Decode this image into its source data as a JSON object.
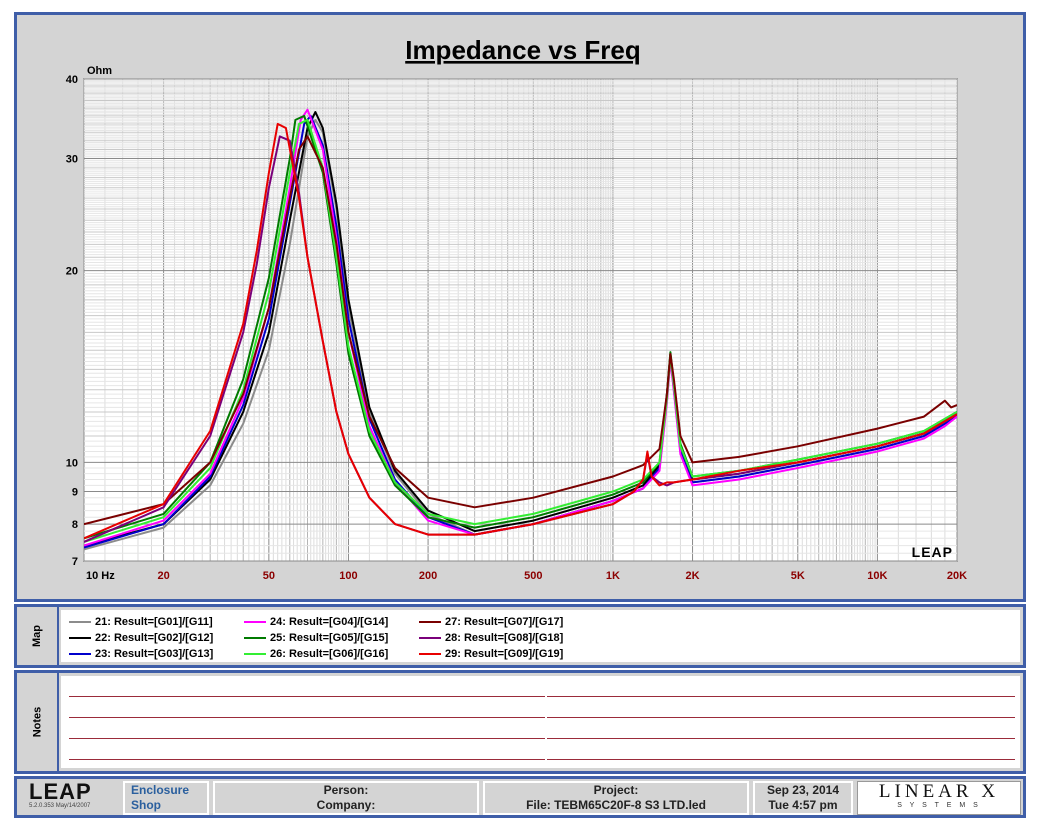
{
  "chart_data": {
    "type": "line",
    "title": "Impedance vs Freq",
    "ylabel": "Ohm",
    "x_scale": "log",
    "y_scale": "log",
    "xlim": [
      10,
      20000
    ],
    "ylim": [
      7,
      40
    ],
    "x_ticks": [
      10,
      20,
      50,
      100,
      200,
      500,
      1000,
      2000,
      5000,
      10000,
      20000
    ],
    "x_tick_labels": [
      "10 Hz",
      "20",
      "50",
      "100",
      "200",
      "500",
      "1K",
      "2K",
      "5K",
      "10K",
      "20K"
    ],
    "y_ticks": [
      7,
      8,
      9,
      10,
      20,
      30,
      40
    ],
    "y_tick_labels": [
      "7",
      "8",
      "9",
      "10",
      "20",
      "30",
      "40"
    ],
    "grid": true,
    "watermark": "LEAP",
    "series": [
      {
        "name": "21: Result=[G01]/[G11]",
        "color": "#8c8c8c",
        "x": [
          10,
          20,
          30,
          40,
          50,
          60,
          70,
          75,
          80,
          90,
          100,
          120,
          150,
          200,
          300,
          500,
          1000,
          1300,
          1500,
          1600,
          1650,
          1700,
          1800,
          2000,
          3000,
          5000,
          10000,
          15000,
          18000,
          20000
        ],
        "y": [
          7.3,
          7.9,
          9.2,
          11.5,
          15.0,
          22.0,
          32.5,
          34.5,
          33.0,
          25.0,
          17.5,
          12.0,
          9.6,
          8.3,
          7.7,
          8.0,
          8.7,
          9.1,
          9.8,
          12.5,
          14.6,
          13.0,
          10.5,
          9.3,
          9.5,
          9.9,
          10.5,
          11.0,
          11.5,
          11.8
        ]
      },
      {
        "name": "22: Result=[G02]/[G12]",
        "color": "#000000",
        "x": [
          10,
          20,
          30,
          40,
          50,
          60,
          70,
          75,
          80,
          90,
          100,
          120,
          150,
          200,
          300,
          500,
          1000,
          1300,
          1500,
          1600,
          1650,
          1700,
          1800,
          2000,
          3000,
          5000,
          10000,
          15000,
          18000,
          20000
        ],
        "y": [
          7.4,
          8.0,
          9.4,
          12.0,
          16.0,
          24.0,
          33.5,
          35.5,
          33.5,
          25.5,
          18.0,
          12.2,
          9.7,
          8.4,
          7.8,
          8.1,
          8.8,
          9.2,
          9.9,
          12.8,
          14.8,
          13.2,
          10.6,
          9.4,
          9.6,
          10.0,
          10.6,
          11.1,
          11.6,
          11.9
        ]
      },
      {
        "name": "23: Result=[G03]/[G13]",
        "color": "#0000cc",
        "x": [
          10,
          20,
          30,
          40,
          50,
          60,
          68,
          72,
          80,
          90,
          100,
          120,
          150,
          200,
          300,
          500,
          1000,
          1300,
          1500,
          1600,
          1650,
          1700,
          1800,
          2000,
          3000,
          5000,
          10000,
          15000,
          18000,
          20000
        ],
        "y": [
          7.35,
          8.0,
          9.5,
          12.3,
          16.8,
          25.5,
          34.0,
          35.0,
          31.5,
          23.5,
          16.8,
          11.7,
          9.4,
          8.2,
          7.7,
          8.0,
          8.7,
          9.1,
          9.8,
          12.6,
          14.7,
          13.0,
          10.4,
          9.3,
          9.5,
          9.9,
          10.5,
          11.0,
          11.5,
          11.8
        ]
      },
      {
        "name": "24: Result=[G04]/[G14]",
        "color": "#ff00ff",
        "x": [
          10,
          20,
          30,
          40,
          50,
          60,
          66,
          70,
          80,
          90,
          100,
          120,
          150,
          200,
          300,
          500,
          1000,
          1300,
          1500,
          1600,
          1650,
          1700,
          1800,
          2000,
          3000,
          5000,
          10000,
          15000,
          18000,
          20000
        ],
        "y": [
          7.4,
          8.1,
          9.6,
          12.6,
          17.5,
          27.0,
          34.5,
          35.8,
          31.0,
          22.5,
          16.0,
          11.4,
          9.3,
          8.1,
          7.7,
          8.0,
          8.7,
          9.1,
          9.7,
          12.4,
          14.5,
          12.9,
          10.3,
          9.2,
          9.4,
          9.8,
          10.4,
          10.9,
          11.4,
          11.8
        ]
      },
      {
        "name": "25: Result=[G05]/[G15]",
        "color": "#007a00",
        "x": [
          10,
          20,
          30,
          40,
          50,
          60,
          63,
          68,
          80,
          90,
          100,
          120,
          150,
          200,
          300,
          500,
          1000,
          1300,
          1500,
          1600,
          1650,
          1700,
          1800,
          2000,
          3000,
          5000,
          10000,
          15000,
          18000,
          20000
        ],
        "y": [
          7.6,
          8.3,
          10.0,
          13.5,
          19.5,
          30.0,
          34.5,
          35.0,
          28.5,
          20.5,
          14.8,
          11.0,
          9.2,
          8.2,
          7.9,
          8.2,
          8.9,
          9.3,
          10.0,
          12.8,
          14.9,
          13.3,
          10.7,
          9.5,
          9.7,
          10.1,
          10.7,
          11.2,
          11.7,
          12.0
        ]
      },
      {
        "name": "26: Result=[G06]/[G16]",
        "color": "#33ee33",
        "x": [
          10,
          20,
          30,
          40,
          50,
          60,
          65,
          70,
          80,
          90,
          100,
          120,
          150,
          200,
          300,
          500,
          1000,
          1300,
          1500,
          1600,
          1650,
          1700,
          1800,
          2000,
          3000,
          5000,
          10000,
          15000,
          18000,
          20000
        ],
        "y": [
          7.5,
          8.2,
          9.8,
          13.0,
          18.5,
          28.5,
          34.0,
          34.5,
          29.0,
          21.0,
          15.2,
          11.2,
          9.3,
          8.3,
          8.0,
          8.3,
          9.0,
          9.4,
          10.0,
          12.6,
          14.7,
          13.2,
          10.6,
          9.5,
          9.7,
          10.1,
          10.7,
          11.2,
          11.7,
          12.0
        ]
      },
      {
        "name": "27: Result=[G07]/[G17]",
        "color": "#7a0000",
        "x": [
          10,
          20,
          30,
          40,
          50,
          60,
          65,
          70,
          80,
          90,
          100,
          120,
          150,
          200,
          300,
          500,
          1000,
          1300,
          1500,
          1600,
          1650,
          1700,
          1800,
          2000,
          3000,
          5000,
          10000,
          15000,
          18000,
          19000,
          20000
        ],
        "y": [
          8.0,
          8.6,
          10.0,
          12.8,
          17.5,
          26.0,
          31.0,
          32.5,
          29.0,
          22.0,
          16.0,
          11.8,
          9.8,
          8.8,
          8.5,
          8.8,
          9.5,
          9.9,
          10.5,
          12.8,
          14.8,
          13.5,
          11.0,
          10.0,
          10.2,
          10.6,
          11.3,
          11.8,
          12.5,
          12.2,
          12.3
        ]
      },
      {
        "name": "28: Result=[G08]/[G18]",
        "color": "#7a007a",
        "x": [
          10,
          20,
          30,
          40,
          45,
          50,
          55,
          60,
          65,
          70,
          80,
          90,
          100,
          120,
          150,
          200,
          300,
          500,
          1000,
          1200,
          1300,
          1350,
          1400,
          1500,
          1600,
          1700,
          2000,
          3000,
          5000,
          10000,
          15000,
          18000,
          20000
        ],
        "y": [
          7.5,
          8.5,
          11.0,
          16.0,
          20.5,
          27.0,
          32.5,
          32.0,
          26.5,
          21.0,
          15.5,
          12.0,
          10.3,
          8.8,
          8.0,
          7.7,
          7.7,
          8.0,
          8.6,
          9.0,
          9.4,
          10.3,
          9.5,
          9.3,
          9.2,
          9.3,
          9.4,
          9.6,
          10.0,
          10.6,
          11.1,
          11.6,
          11.9
        ]
      },
      {
        "name": "29: Result=[G09]/[G19]",
        "color": "#e80000",
        "x": [
          10,
          20,
          30,
          40,
          45,
          50,
          54,
          58,
          65,
          70,
          80,
          90,
          100,
          120,
          150,
          200,
          300,
          500,
          1000,
          1200,
          1300,
          1350,
          1400,
          1500,
          1600,
          1700,
          2000,
          3000,
          5000,
          10000,
          15000,
          18000,
          20000
        ],
        "y": [
          7.6,
          8.6,
          11.2,
          16.5,
          21.5,
          28.5,
          34.0,
          33.5,
          26.0,
          21.0,
          15.5,
          12.0,
          10.3,
          8.8,
          8.0,
          7.7,
          7.7,
          8.0,
          8.6,
          9.0,
          9.4,
          10.4,
          9.5,
          9.2,
          9.3,
          9.3,
          9.4,
          9.7,
          10.0,
          10.6,
          11.1,
          11.6,
          11.9
        ]
      }
    ]
  },
  "map": {
    "label": "Map"
  },
  "notes": {
    "label": "Notes"
  },
  "footer": {
    "logo": "LEAP",
    "version": "5.2.0.353   May/14/2007",
    "module_line1": "Enclosure",
    "module_line2": "Shop",
    "person_label": "Person:",
    "company_label": "Company:",
    "project_label": "Project:",
    "file_label": "File: TEBM65C20F-8 S3 LTD.led",
    "date": "Sep 23, 2014",
    "time": "Tue  4:57 pm",
    "brand_top": "LINEAR X",
    "brand_bottom": "S Y S T E M S"
  }
}
